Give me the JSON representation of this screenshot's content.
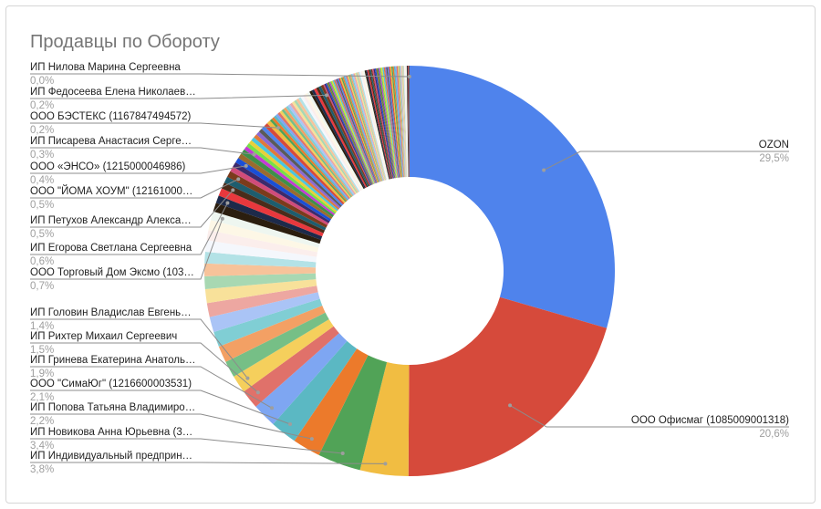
{
  "chart_data": {
    "type": "pie",
    "donut": true,
    "title": "Продавцы по Обороту",
    "start": "top",
    "direction": "clockwise",
    "colors": [
      "#4f83ec",
      "#d64a3b",
      "#f1bd42",
      "#51a357",
      "#ec7a2b",
      "#5bb8c3",
      "#7ea6f2",
      "#e0716a",
      "#f5cf5c",
      "#76bf86",
      "#f3a064",
      "#80ced4",
      "#aac4f6",
      "#eda7a1",
      "#f8e19a",
      "#a8d8b2",
      "#f7c39a",
      "#b3e2e6",
      "#f4f7fc",
      "#fbeeec",
      "#fdf7e6",
      "#eef6f0",
      "#2b1e0f",
      "#1d2a4a",
      "#e8383d",
      "#4a2c1a",
      "#1e5d6e",
      "#7b3b1c",
      "#d04c7a",
      "#3c2a6b",
      "#1a4fd6",
      "#9a6b2e",
      "#3f8f4a",
      "#c23bd4",
      "#76e04a",
      "#e8d03a",
      "#4ac6e0",
      "#e07a3a",
      "#8a6ad4",
      "#5a5a5a"
    ],
    "slices": [
      {
        "label": "OZON",
        "pct": "29,5%",
        "value": 29.5,
        "side": "right"
      },
      {
        "label": "ООО Офисмаг (1085009001318)",
        "pct": "20,6%",
        "value": 20.6,
        "side": "right"
      },
      {
        "label": "ИП Индивидуальный предприн…",
        "pct": "3,8%",
        "value": 3.8,
        "side": "left"
      },
      {
        "label": "ИП Новикова Анна Юрьевна (3…",
        "pct": "3,4%",
        "value": 3.4,
        "side": "left"
      },
      {
        "label": "ИП Попова Татьяна Владимиро…",
        "pct": "2,2%",
        "value": 2.2,
        "side": "left"
      },
      {
        "label": "ООО \"СимаЮг\" (1216600003531)",
        "pct": "2,1%",
        "value": 2.1,
        "side": "left"
      },
      {
        "label": "ИП Гринева Екатерина Анатоль…",
        "pct": "1,9%",
        "value": 1.9,
        "side": "left"
      },
      {
        "label": "ИП Рихтер Михаил Сергеевич",
        "pct": "1,5%",
        "value": 1.5,
        "side": "left"
      },
      {
        "label": "ИП Головин Владислав Евгень…",
        "pct": "1,4%",
        "value": 1.4,
        "side": "left"
      },
      {
        "value": 1.3,
        "repeat": 2
      },
      {
        "value": 1.2,
        "repeat": 2
      },
      {
        "value": 1.1,
        "repeat": 2
      },
      {
        "value": 1.0,
        "repeat": 2
      },
      {
        "value": 0.9,
        "repeat": 2
      },
      {
        "value": 0.8,
        "repeat": 2
      },
      {
        "label": "ООО Торговый Дом Эксмо (103…",
        "pct": "0,7%",
        "value": 0.7,
        "side": "left"
      },
      {
        "value": 0.7
      },
      {
        "label": "ИП Егорова Светлана Сергеевна",
        "pct": "0,6%",
        "value": 0.6,
        "side": "left"
      },
      {
        "value": 0.6
      },
      {
        "label": "ИП Петухов Александр Алекса…",
        "pct": "0,5%",
        "value": 0.5,
        "side": "left"
      },
      {
        "value": 0.5
      },
      {
        "label": "ООО \"ЙОМА ХОУМ\" (12161000…",
        "pct": "0,5%",
        "value": 0.5,
        "side": "left"
      },
      {
        "value": 0.4,
        "repeat": 2
      },
      {
        "label": "ООО «ЭНСО» (1215000046986)",
        "pct": "0,4%",
        "value": 0.4,
        "side": "left"
      },
      {
        "value": 0.4,
        "repeat": 2
      },
      {
        "label": "ИП Писарева Анастасия Серге…",
        "pct": "0,3%",
        "value": 0.3,
        "side": "left"
      },
      {
        "value": 0.3,
        "repeat": 9
      },
      {
        "label": "ООО БЭСТЕКС (1167847494572)",
        "pct": "0,2%",
        "value": 0.2,
        "side": "left"
      },
      {
        "value": 0.2,
        "repeat": 23
      },
      {
        "label": "ИП Федосеева Елена Николаев…",
        "pct": "0,2%",
        "value": 0.2,
        "side": "left"
      },
      {
        "value": 0.1,
        "repeat": 60
      },
      {
        "value": 0.05,
        "repeat": 18
      },
      {
        "label": "ИП Нилова Марина Сергеевна",
        "pct": "0,0%",
        "value": 0.02,
        "side": "left"
      }
    ]
  }
}
